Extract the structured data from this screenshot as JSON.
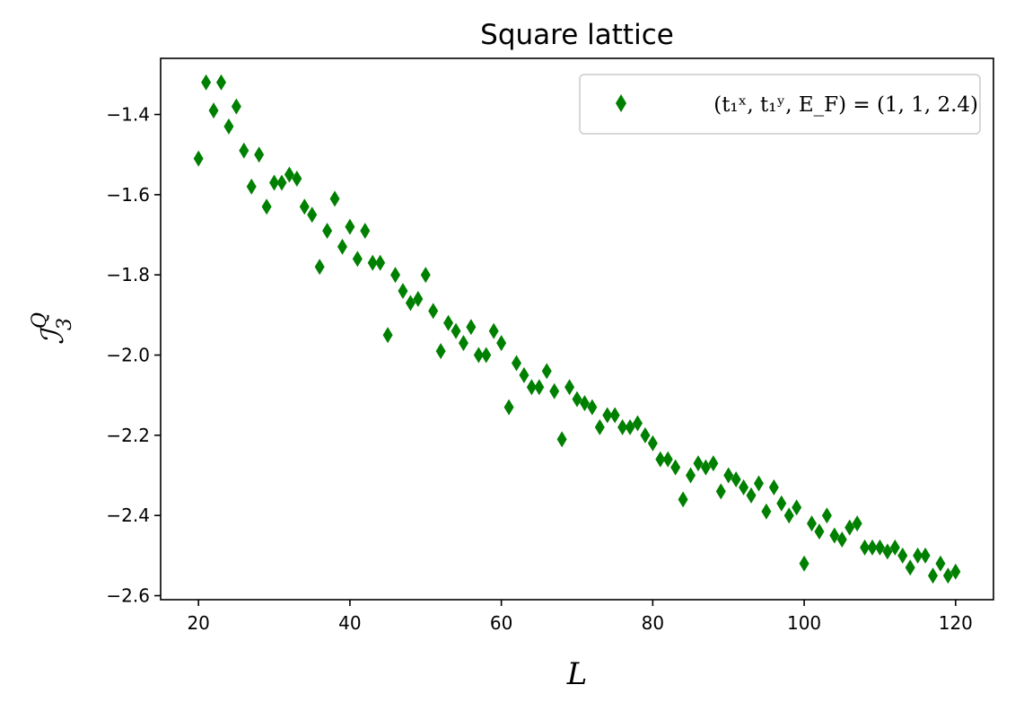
{
  "chart_data": {
    "type": "scatter",
    "title": "Square lattice",
    "xlabel": "L",
    "ylabel_main": "ℐ",
    "ylabel_sub": "3",
    "ylabel_sup": "Q",
    "xlim": [
      15,
      125
    ],
    "ylim": [
      -2.61,
      -1.26
    ],
    "xticks": [
      20,
      40,
      60,
      80,
      100,
      120
    ],
    "xtick_labels": [
      "20",
      "40",
      "60",
      "80",
      "100",
      "120"
    ],
    "yticks": [
      -1.4,
      -1.6,
      -1.8,
      -2.0,
      -2.2,
      -2.4,
      -2.6
    ],
    "ytick_labels": [
      "−1.4",
      "−1.6",
      "−1.8",
      "−2.0",
      "−2.2",
      "−2.4",
      "−2.6"
    ],
    "grid": false,
    "legend_position": "top-right",
    "marker": "thin-diamond",
    "marker_color": "#008000",
    "series": [
      {
        "name": "(t₁ˣ, t₁ʸ, E_F) = (1, 1, 2.4)",
        "x": [
          20,
          21,
          22,
          23,
          24,
          25,
          26,
          27,
          28,
          29,
          30,
          31,
          32,
          33,
          34,
          35,
          36,
          37,
          38,
          39,
          40,
          41,
          42,
          43,
          44,
          45,
          46,
          47,
          48,
          49,
          50,
          51,
          52,
          53,
          54,
          55,
          56,
          57,
          58,
          59,
          60,
          61,
          62,
          63,
          64,
          65,
          66,
          67,
          68,
          69,
          70,
          71,
          72,
          73,
          74,
          75,
          76,
          77,
          78,
          79,
          80,
          81,
          82,
          83,
          84,
          85,
          86,
          87,
          88,
          89,
          90,
          91,
          92,
          93,
          94,
          95,
          96,
          97,
          98,
          99,
          100,
          101,
          102,
          103,
          104,
          105,
          106,
          107,
          108,
          109,
          110,
          111,
          112,
          113,
          114,
          115,
          116,
          117,
          118,
          119,
          120
        ],
        "y": [
          -1.51,
          -1.32,
          -1.39,
          -1.32,
          -1.43,
          -1.38,
          -1.49,
          -1.58,
          -1.5,
          -1.63,
          -1.57,
          -1.57,
          -1.55,
          -1.56,
          -1.63,
          -1.65,
          -1.78,
          -1.69,
          -1.61,
          -1.73,
          -1.68,
          -1.76,
          -1.69,
          -1.77,
          -1.77,
          -1.95,
          -1.8,
          -1.84,
          -1.87,
          -1.86,
          -1.8,
          -1.89,
          -1.99,
          -1.92,
          -1.94,
          -1.97,
          -1.93,
          -2.0,
          -2.0,
          -1.94,
          -1.97,
          -2.13,
          -2.02,
          -2.05,
          -2.08,
          -2.08,
          -2.04,
          -2.09,
          -2.21,
          -2.08,
          -2.11,
          -2.12,
          -2.13,
          -2.18,
          -2.15,
          -2.15,
          -2.18,
          -2.18,
          -2.17,
          -2.2,
          -2.22,
          -2.26,
          -2.26,
          -2.28,
          -2.36,
          -2.3,
          -2.27,
          -2.28,
          -2.27,
          -2.34,
          -2.3,
          -2.31,
          -2.33,
          -2.35,
          -2.32,
          -2.39,
          -2.33,
          -2.37,
          -2.4,
          -2.38,
          -2.52,
          -2.42,
          -2.44,
          -2.4,
          -2.45,
          -2.46,
          -2.43,
          -2.42,
          -2.48,
          -2.48,
          -2.48,
          -2.49,
          -2.48,
          -2.5,
          -2.53,
          -2.5,
          -2.5,
          -2.55,
          -2.52,
          -2.55,
          -2.54
        ]
      }
    ]
  }
}
